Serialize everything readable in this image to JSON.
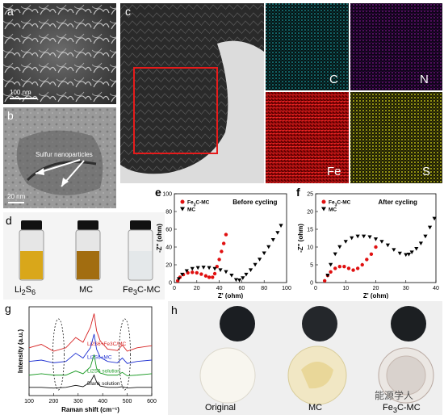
{
  "figure": {
    "panels": {
      "a": {
        "label": "a",
        "scale": "100 nm"
      },
      "b": {
        "label": "b",
        "scale": "20 nm",
        "annotation": "Sulfur nanoparticles"
      },
      "c": {
        "label": "c",
        "maps": [
          "C",
          "N",
          "Fe",
          "S"
        ],
        "map_colors": {
          "C": "#22c0c7",
          "N": "#b01cc0",
          "Fe": "#e51212",
          "S": "#e7e51b"
        }
      },
      "d": {
        "label": "d",
        "vials": [
          "Li2S6",
          "MC",
          "Fe3C-MC"
        ]
      },
      "g": {
        "label": "g"
      },
      "h": {
        "label": "h",
        "disks": [
          "Original",
          "MC",
          "Fe3C-MC"
        ],
        "watermark": "能源学人"
      }
    }
  },
  "chart_data": [
    {
      "panel": "e",
      "type": "scatter",
      "title": "Before cycling",
      "xlabel": "Z' (ohm)",
      "ylabel": "-Z'' (ohm)",
      "xlim": [
        0,
        100
      ],
      "ylim": [
        0,
        100
      ],
      "xticks": [
        0,
        20,
        40,
        60,
        80,
        100
      ],
      "yticks": [
        0,
        20,
        40,
        60,
        80,
        100
      ],
      "series": [
        {
          "name": "Fe3C-MC",
          "marker": "circle",
          "color": "#e01010",
          "x": [
            3,
            5,
            8,
            12,
            16,
            20,
            24,
            28,
            31,
            34,
            36,
            38,
            40,
            42,
            44,
            46
          ],
          "y": [
            2,
            6,
            9,
            11,
            11.5,
            11,
            9.5,
            7.5,
            6,
            6,
            10,
            18,
            26,
            35,
            44,
            54
          ]
        },
        {
          "name": "MC",
          "marker": "triangle-down",
          "color": "#000000",
          "x": [
            4,
            7,
            11,
            16,
            21,
            26,
            31,
            36,
            41,
            46,
            51,
            55,
            58,
            61,
            64,
            68,
            72,
            76,
            80,
            84,
            88,
            92,
            95
          ],
          "y": [
            4,
            9,
            13,
            15.5,
            16.5,
            17,
            16.5,
            15.5,
            14,
            12,
            8,
            3,
            2.5,
            5,
            9,
            14,
            20,
            26,
            33,
            40,
            48,
            56,
            64
          ]
        }
      ]
    },
    {
      "panel": "f",
      "type": "scatter",
      "title": "After cycling",
      "xlabel": "Z' (ohm)",
      "ylabel": "-Z'' (ohm)",
      "xlim": [
        0,
        40
      ],
      "ylim": [
        0,
        25
      ],
      "xticks": [
        0,
        10,
        20,
        30,
        40
      ],
      "yticks": [
        0,
        5,
        10,
        15,
        20,
        25
      ],
      "series": [
        {
          "name": "Fe3C-MC",
          "marker": "circle",
          "color": "#e01010",
          "x": [
            3,
            4,
            5,
            6.5,
            8,
            9.5,
            11,
            12.5,
            14,
            15.5,
            17,
            18.5,
            20
          ],
          "y": [
            0.5,
            2,
            3,
            4,
            4.5,
            4.5,
            4,
            3.5,
            4,
            5,
            6.5,
            8,
            10
          ]
        },
        {
          "name": "MC",
          "marker": "triangle-down",
          "color": "#000000",
          "x": [
            4,
            5,
            6.5,
            8,
            10,
            12,
            14,
            16,
            18,
            20,
            22,
            24,
            26,
            28,
            30,
            31,
            32,
            33.5,
            35,
            36.5,
            38,
            39.5
          ],
          "y": [
            2,
            5,
            8,
            10,
            11.5,
            12.5,
            13,
            13,
            12.8,
            12.2,
            11.5,
            10.5,
            9.2,
            8.2,
            7.8,
            7.9,
            8.5,
            9.5,
            11,
            13,
            15.5,
            18
          ]
        }
      ]
    },
    {
      "panel": "g",
      "type": "line",
      "xlabel": "Raman shift (cm⁻¹)",
      "ylabel": "Intensity (a.u.)",
      "xlim": [
        100,
        600
      ],
      "xticks": [
        100,
        200,
        300,
        400,
        500,
        600
      ],
      "series": [
        {
          "name": "Li2S6+Fe3C/MC",
          "color": "#d62020",
          "x": [
            100,
            150,
            200,
            250,
            290,
            320,
            350,
            365,
            375,
            390,
            420,
            460,
            480,
            500,
            540,
            600
          ],
          "y": [
            0.7,
            0.75,
            0.65,
            0.7,
            0.85,
            0.78,
            1.0,
            1.2,
            0.95,
            0.8,
            0.68,
            0.66,
            0.74,
            0.65,
            0.7,
            0.73
          ]
        },
        {
          "name": "Li2S6+MC",
          "color": "#1d2fd1",
          "x": [
            100,
            150,
            200,
            250,
            290,
            320,
            350,
            365,
            375,
            390,
            420,
            460,
            480,
            500,
            540,
            600
          ],
          "y": [
            0.5,
            0.52,
            0.48,
            0.5,
            0.62,
            0.55,
            0.7,
            0.9,
            0.68,
            0.56,
            0.5,
            0.48,
            0.55,
            0.47,
            0.5,
            0.52
          ]
        },
        {
          "name": "Li2S6 solution",
          "color": "#1a9a24",
          "x": [
            100,
            150,
            200,
            250,
            290,
            320,
            350,
            365,
            375,
            390,
            420,
            460,
            480,
            500,
            540,
            600
          ],
          "y": [
            0.3,
            0.32,
            0.3,
            0.3,
            0.36,
            0.32,
            0.42,
            0.6,
            0.4,
            0.33,
            0.3,
            0.3,
            0.34,
            0.29,
            0.3,
            0.32
          ]
        },
        {
          "name": "Blank solution",
          "color": "#111111",
          "x": [
            100,
            150,
            200,
            250,
            290,
            320,
            350,
            365,
            375,
            390,
            420,
            460,
            480,
            500,
            540,
            600
          ],
          "y": [
            0.12,
            0.12,
            0.11,
            0.12,
            0.15,
            0.13,
            0.2,
            0.3,
            0.2,
            0.14,
            0.12,
            0.12,
            0.13,
            0.11,
            0.12,
            0.12
          ]
        }
      ],
      "annotations": [
        "dashed ellipse near 220 cm-1",
        "dashed ellipse near 490 cm-1"
      ]
    }
  ]
}
